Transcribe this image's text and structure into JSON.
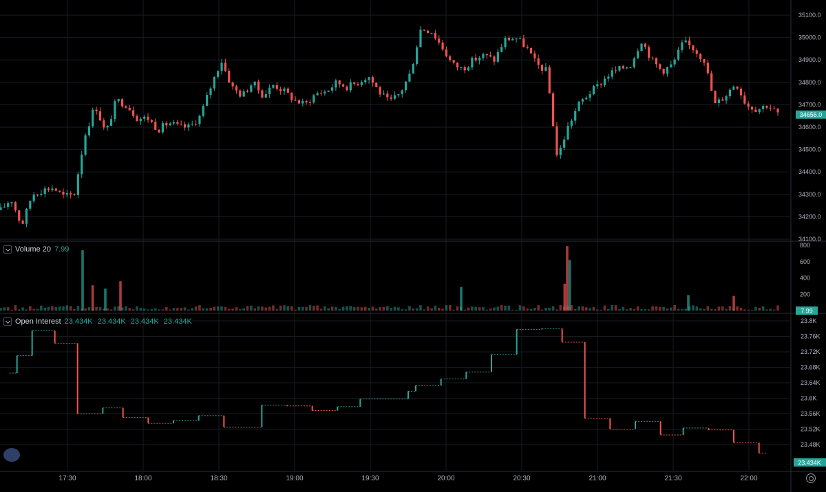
{
  "panels": {
    "volume": {
      "title": "Volume 20",
      "value": "7.99",
      "badge": "7.99"
    },
    "open_interest": {
      "title": "Open Interest",
      "values": [
        "23.434K",
        "23.434K",
        "23.434K",
        "23.434K"
      ],
      "badge": "23.434K"
    },
    "price_badge": "34656.0"
  },
  "colors": {
    "up": "#26a69a",
    "down": "#ef5350",
    "grid": "#1a1c22",
    "badge": "#26a69a"
  },
  "icons": [
    "chevron-down-icon",
    "gear-icon",
    "logo-icon"
  ],
  "chart_data": [
    {
      "type": "candlestick",
      "name": "price",
      "ylim": [
        34100,
        35100
      ],
      "y_ticks": [
        "35100.0",
        "35000.0",
        "34900.0",
        "34800.0",
        "34700.0",
        "34600.0",
        "34500.0",
        "34400.0",
        "34300.0",
        "34200.0",
        "34100.0"
      ],
      "x_ticks": [
        "17:30",
        "18:00",
        "18:30",
        "19:00",
        "19:30",
        "20:00",
        "20:30",
        "21:00",
        "21:30",
        "22:00"
      ],
      "path_closes": [
        34230,
        34280,
        34160,
        34300,
        34320,
        34330,
        34290,
        34300,
        34560,
        34700,
        34570,
        34720,
        34700,
        34640,
        34640,
        34590,
        34620,
        34600,
        34600,
        34650,
        34780,
        34900,
        34780,
        34740,
        34800,
        34740,
        34790,
        34760,
        34720,
        34700,
        34750,
        34760,
        34800,
        34780,
        34800,
        34830,
        34760,
        34710,
        34750,
        34840,
        35040,
        35030,
        34960,
        34880,
        34860,
        34900,
        34920,
        34900,
        34990,
        35000,
        34960,
        34880,
        34850,
        34460,
        34600,
        34700,
        34750,
        34790,
        34840,
        34860,
        34880,
        34990,
        34900,
        34850,
        34880,
        34980,
        34950,
        34900,
        34700,
        34740,
        34800,
        34700,
        34680,
        34700,
        34660
      ],
      "last": 34656.0
    },
    {
      "type": "bar",
      "name": "Volume 20",
      "ylim": [
        0,
        800
      ],
      "y_ticks": [
        "800",
        "600",
        "400",
        "200"
      ],
      "spikes": [
        {
          "time": "17:36",
          "value": 740
        },
        {
          "time": "17:40",
          "value": 310
        },
        {
          "time": "17:45",
          "value": 270
        },
        {
          "time": "17:51",
          "value": 360
        },
        {
          "time": "20:06",
          "value": 290
        },
        {
          "time": "20:48",
          "value": 790
        },
        {
          "time": "20:49",
          "value": 620
        },
        {
          "time": "20:47",
          "value": 330
        },
        {
          "time": "21:36",
          "value": 190
        },
        {
          "time": "21:54",
          "value": 180
        }
      ],
      "last": 7.99
    },
    {
      "type": "step",
      "name": "Open Interest",
      "ylim": [
        23440,
        23800
      ],
      "y_ticks": [
        "23.8K",
        "23.76K",
        "23.72K",
        "23.68K",
        "23.64K",
        "23.6K",
        "23.56K",
        "23.52K",
        "23.48K"
      ],
      "segments": [
        {
          "from": "17:07",
          "to": "17:10",
          "value": 23665
        },
        {
          "from": "17:10",
          "to": "17:16",
          "value": 23710
        },
        {
          "from": "17:16",
          "to": "17:25",
          "value": 23775
        },
        {
          "from": "17:25",
          "to": "17:34",
          "value": 23742
        },
        {
          "from": "17:34",
          "to": "17:44",
          "value": 23560
        },
        {
          "from": "17:44",
          "to": "17:52",
          "value": 23575
        },
        {
          "from": "17:52",
          "to": "18:02",
          "value": 23550
        },
        {
          "from": "18:02",
          "to": "18:12",
          "value": 23535
        },
        {
          "from": "18:12",
          "to": "18:22",
          "value": 23542
        },
        {
          "from": "18:22",
          "to": "18:32",
          "value": 23555
        },
        {
          "from": "18:32",
          "to": "18:47",
          "value": 23525
        },
        {
          "from": "18:47",
          "to": "18:57",
          "value": 23582
        },
        {
          "from": "18:57",
          "to": "19:07",
          "value": 23580
        },
        {
          "from": "19:07",
          "to": "19:17",
          "value": 23568
        },
        {
          "from": "19:17",
          "to": "19:26",
          "value": 23578
        },
        {
          "from": "19:26",
          "to": "19:45",
          "value": 23598
        },
        {
          "from": "19:45",
          "to": "19:48",
          "value": 23618
        },
        {
          "from": "19:48",
          "to": "19:58",
          "value": 23633
        },
        {
          "from": "19:58",
          "to": "20:08",
          "value": 23650
        },
        {
          "from": "20:08",
          "to": "20:18",
          "value": 23668
        },
        {
          "from": "20:18",
          "to": "20:28",
          "value": 23713
        },
        {
          "from": "20:28",
          "to": "20:38",
          "value": 23778
        },
        {
          "from": "20:38",
          "to": "20:46",
          "value": 23780
        },
        {
          "from": "20:46",
          "to": "20:55",
          "value": 23745
        },
        {
          "from": "20:55",
          "to": "21:05",
          "value": 23548
        },
        {
          "from": "21:05",
          "to": "21:15",
          "value": 23520
        },
        {
          "from": "21:15",
          "to": "21:25",
          "value": 23540
        },
        {
          "from": "21:25",
          "to": "21:34",
          "value": 23505
        },
        {
          "from": "21:34",
          "to": "21:44",
          "value": 23523
        },
        {
          "from": "21:44",
          "to": "21:54",
          "value": 23518
        },
        {
          "from": "21:54",
          "to": "22:04",
          "value": 23485
        },
        {
          "from": "22:04",
          "to": "22:07",
          "value": 23458
        }
      ],
      "last": 23434
    }
  ]
}
